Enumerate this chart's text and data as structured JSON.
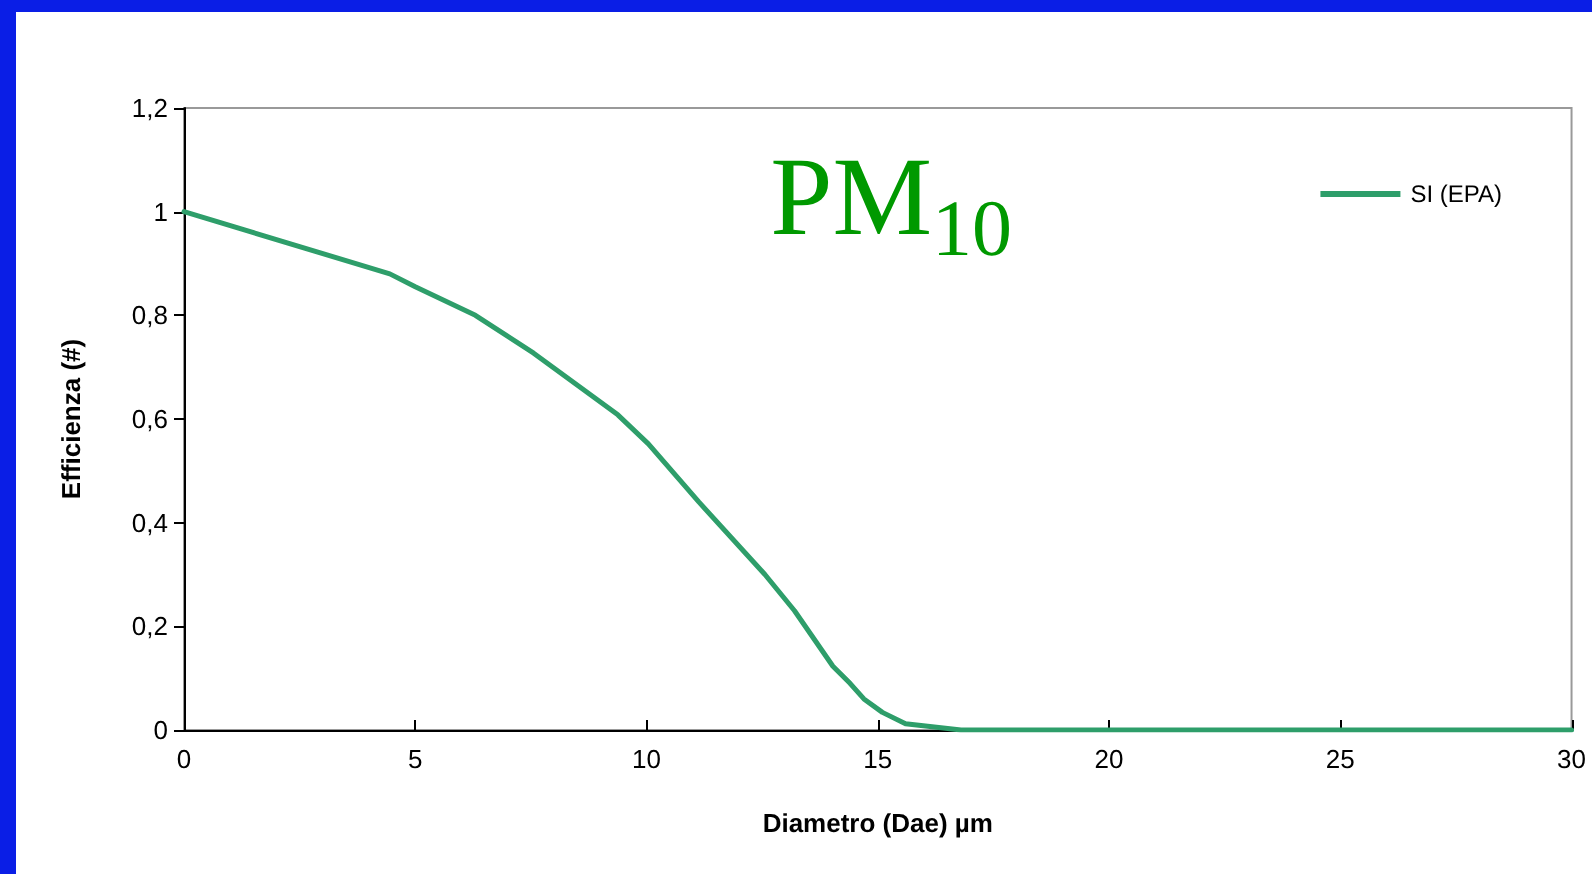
{
  "chart_data": {
    "type": "line",
    "xlabel": "Diametro (Dae) µm",
    "ylabel": "Efficienza (#)",
    "annotations": [
      "PM$_{10}$"
    ],
    "x": [
      0,
      4.45,
      5,
      6.3,
      7.56,
      9.38,
      10.04,
      11.13,
      12.56,
      13.2,
      14.03,
      14.4,
      14.7,
      15.1,
      15.6,
      16.8,
      30
    ],
    "series": [
      {
        "name": "SI (EPA)",
        "color": "#2e9e6a",
        "values": [
          1,
          0.88,
          0.855,
          0.8,
          0.727,
          0.608,
          0.552,
          0.44,
          0.3,
          0.23,
          0.123,
          0.09,
          0.06,
          0.034,
          0.012,
          0,
          0
        ]
      }
    ],
    "xlim": [
      0,
      30
    ],
    "xticks": [
      0,
      5,
      10,
      15,
      20,
      25,
      30
    ],
    "ylim": [
      0,
      1.2
    ],
    "yticks": [
      0,
      {
        "value": 0.2,
        "label": "0,2"
      },
      {
        "value": 0.4,
        "label": "0,4"
      },
      {
        "value": 0.6,
        "label": "0,6"
      },
      {
        "value": 0.8,
        "label": "0,8"
      },
      1,
      {
        "value": 1.2,
        "label": "1,2"
      }
    ],
    "grid": false,
    "legend": "top right",
    "marker": "none",
    "line_style": "solid"
  }
}
